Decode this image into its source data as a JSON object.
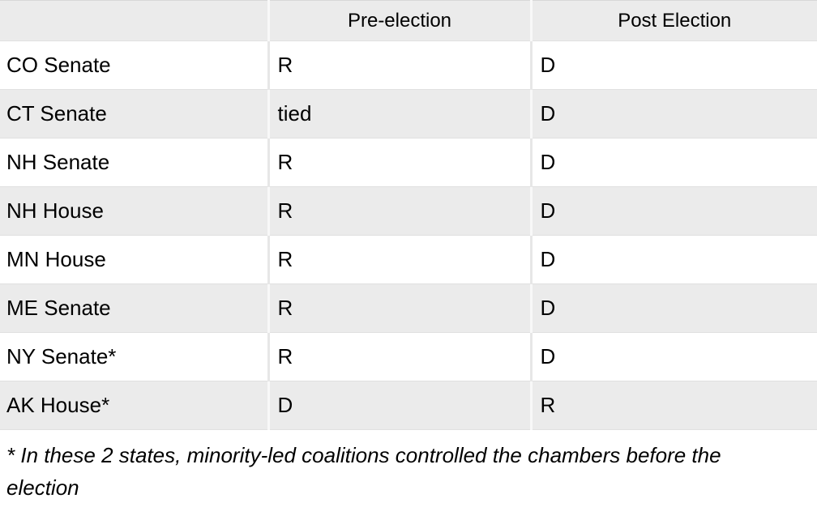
{
  "chart_data": {
    "type": "table",
    "columns": [
      "",
      "Pre-election",
      "Post Election"
    ],
    "rows": [
      [
        "CO Senate",
        "R",
        "D"
      ],
      [
        "CT Senate",
        "tied",
        "D"
      ],
      [
        "NH Senate",
        "R",
        "D"
      ],
      [
        "NH House",
        "R",
        "D"
      ],
      [
        "MN House",
        "R",
        "D"
      ],
      [
        "ME Senate",
        "R",
        "D"
      ],
      [
        "NY Senate*",
        "R",
        "D"
      ],
      [
        "AK House*",
        "D",
        "R"
      ]
    ],
    "footnote": "* In these 2 states, minority-led coalitions controlled the chambers before the election"
  },
  "colors": {
    "shaded_row_background": "#ebebeb",
    "white_row_background": "#ffffff",
    "divider_on_shaded": "#f8f8f8",
    "divider_on_white": "#e7e7e7",
    "row_border": "#e0e0e0",
    "text": "#000000"
  }
}
